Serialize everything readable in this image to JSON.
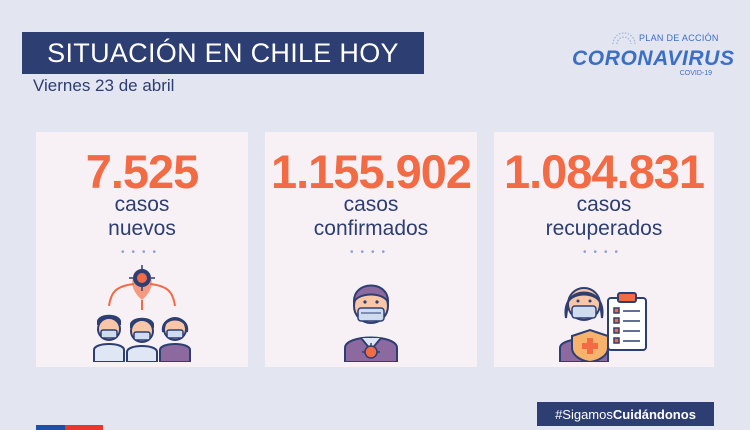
{
  "header": {
    "title": "SITUACIÓN EN CHILE HOY",
    "date": "Viernes 23 de abril"
  },
  "logo": {
    "plan": "PLAN DE ACCIÓN",
    "name": "CORONAVIRUS",
    "sub": "COVID-19"
  },
  "cards": [
    {
      "number": "7.525",
      "line1": "casos",
      "line2": "nuevos",
      "icon": "group-with-virus-icon"
    },
    {
      "number": "1.155.902",
      "line1": "casos",
      "line2": "confirmados",
      "icon": "masked-person-icon"
    },
    {
      "number": "1.084.831",
      "line1": "casos",
      "line2": "recuperados",
      "icon": "recovered-person-clipboard-icon"
    }
  ],
  "footer": {
    "hashtag_prefix": "#Sigamos",
    "hashtag_bold": "Cuidándonos"
  },
  "colors": {
    "background": "#e3e5f1",
    "navy": "#2d3e72",
    "orange": "#f26b45",
    "card": "#f7f1f6",
    "logo_blue": "#3a6fc5"
  }
}
